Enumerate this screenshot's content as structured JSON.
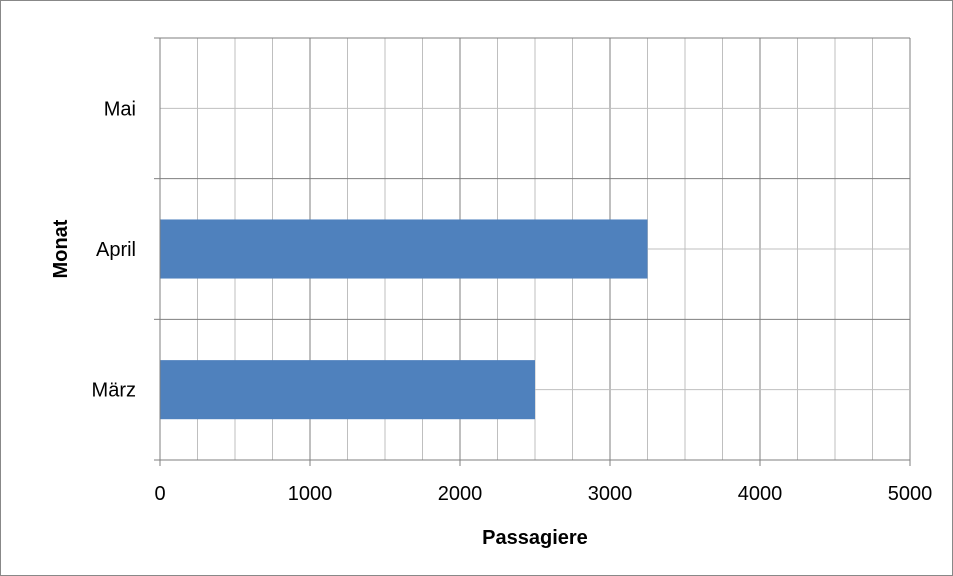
{
  "chart_data": {
    "type": "bar",
    "orientation": "horizontal",
    "title": "",
    "xlabel": "Passagiere",
    "ylabel": "Monat",
    "categories": [
      "März",
      "April",
      "Mai"
    ],
    "values": [
      2500,
      3250,
      0
    ],
    "xlim": [
      0,
      5000
    ],
    "xticks": [
      0,
      1000,
      2000,
      3000,
      4000,
      5000
    ],
    "minor_step": 250,
    "grid": true,
    "legend": "none",
    "colors": {
      "bar": "#4f81bd",
      "major_grid": "#7f7f7f",
      "minor_grid": "#bfbfbf",
      "axis": "#7f7f7f"
    }
  }
}
